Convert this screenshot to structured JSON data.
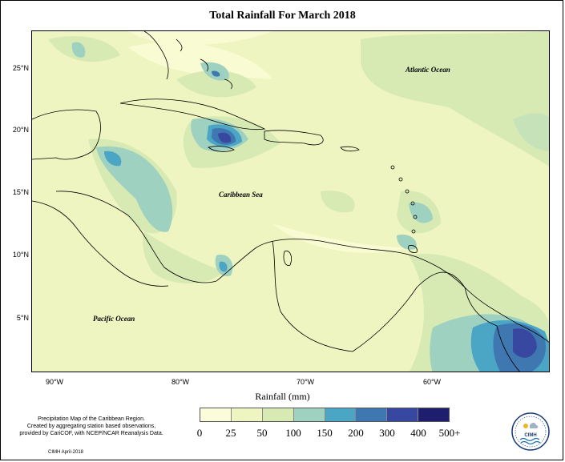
{
  "title": "Total Rainfall For March 2018",
  "map": {
    "labels": {
      "atlantic": "Atlantic Ocean",
      "caribbean": "Caribbean Sea",
      "pacific": "Pacific Ocean"
    },
    "lat_ticks": [
      "25°N",
      "20°N",
      "15°N",
      "10°N",
      "5°N"
    ],
    "lon_ticks": [
      "90°W",
      "80°W",
      "70°W",
      "60°W"
    ]
  },
  "legend": {
    "title": "Rainfall (mm)",
    "labels": [
      "0",
      "25",
      "50",
      "100",
      "150",
      "200",
      "300",
      "400",
      "500+"
    ],
    "colors": [
      "#fbfcd9",
      "#eef5c0",
      "#d8eab4",
      "#9fd1c0",
      "#4ba6c6",
      "#3f78b0",
      "#3848a0",
      "#1d1f6e"
    ]
  },
  "credit": {
    "lines": [
      "Precipitation Map of the Caribbean Region.",
      "Created by aggregating station based observations,",
      "provided by CariCOF, with NCEP/NCAR Reanalysis Data."
    ],
    "date": "CIMH April-2018"
  },
  "logo": {
    "text": "CIMH",
    "icon": "cimh-logo-icon"
  }
}
